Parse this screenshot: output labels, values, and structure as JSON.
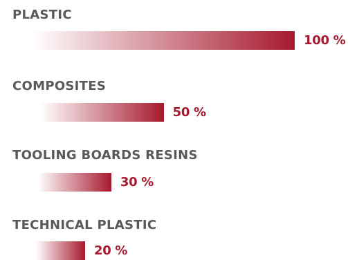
{
  "chart_data": {
    "type": "bar",
    "orientation": "horizontal",
    "categories": [
      "PLASTIC",
      "COMPOSITES",
      "TOOLING BOARDS RESINS",
      "TECHNICAL PLASTIC"
    ],
    "values": [
      100,
      50,
      30,
      20
    ],
    "value_labels": [
      "100 %",
      "50 %",
      "30 %",
      "20 %"
    ],
    "xlim": [
      0,
      100
    ],
    "grid": false,
    "bar_color": "#a6192e",
    "bar_fill": "gradient from transparent (left) to solid (right)",
    "label_color": "#58595b",
    "value_label_color": "#a6192e"
  }
}
